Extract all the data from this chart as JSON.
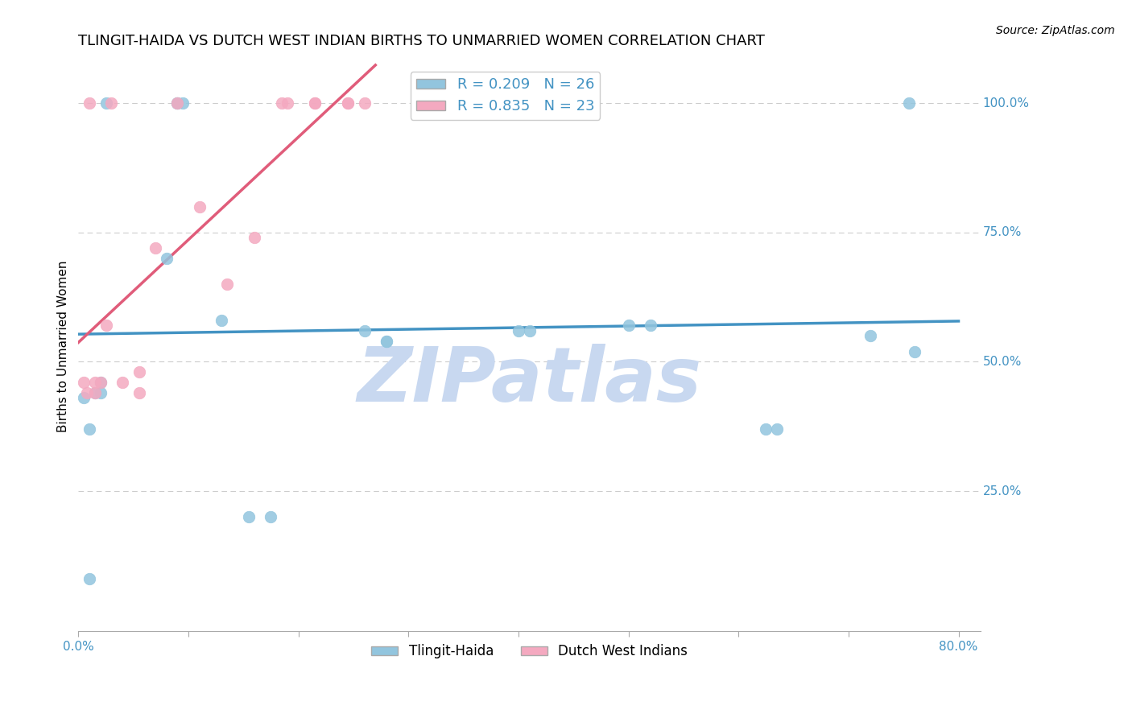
{
  "title": "TLINGIT-HAIDA VS DUTCH WEST INDIAN BIRTHS TO UNMARRIED WOMEN CORRELATION CHART",
  "source": "Source: ZipAtlas.com",
  "ylabel": "Births to Unmarried Women",
  "xlim": [
    0.0,
    0.82
  ],
  "ylim": [
    -0.02,
    1.08
  ],
  "xticks": [
    0.0,
    0.1,
    0.2,
    0.3,
    0.4,
    0.5,
    0.6,
    0.7,
    0.8
  ],
  "xticklabels": [
    "0.0%",
    "",
    "",
    "",
    "",
    "",
    "",
    "",
    "80.0%"
  ],
  "ytick_vals": [
    0.25,
    0.5,
    0.75,
    1.0
  ],
  "ytick_labels": [
    "25.0%",
    "50.0%",
    "75.0%",
    "100.0%"
  ],
  "blue_x": [
    0.005,
    0.01,
    0.01,
    0.015,
    0.02,
    0.02,
    0.025,
    0.08,
    0.09,
    0.09,
    0.095,
    0.13,
    0.155,
    0.175,
    0.26,
    0.28,
    0.28,
    0.4,
    0.41,
    0.5,
    0.52,
    0.625,
    0.635,
    0.72,
    0.755,
    0.76
  ],
  "blue_y": [
    0.43,
    0.37,
    0.08,
    0.44,
    0.46,
    0.44,
    1.0,
    0.7,
    1.0,
    1.0,
    1.0,
    0.58,
    0.2,
    0.2,
    0.56,
    0.54,
    0.54,
    0.56,
    0.56,
    0.57,
    0.57,
    0.37,
    0.37,
    0.55,
    1.0,
    0.52
  ],
  "pink_x": [
    0.005,
    0.008,
    0.01,
    0.015,
    0.015,
    0.02,
    0.025,
    0.03,
    0.04,
    0.055,
    0.055,
    0.07,
    0.09,
    0.11,
    0.135,
    0.16,
    0.185,
    0.19,
    0.215,
    0.215,
    0.245,
    0.245,
    0.26
  ],
  "pink_y": [
    0.46,
    0.44,
    1.0,
    0.44,
    0.46,
    0.46,
    0.57,
    1.0,
    0.46,
    0.44,
    0.48,
    0.72,
    1.0,
    0.8,
    0.65,
    0.74,
    1.0,
    1.0,
    1.0,
    1.0,
    1.0,
    1.0,
    1.0
  ],
  "blue_color": "#92c5de",
  "pink_color": "#f4a9c0",
  "blue_line_color": "#4393c3",
  "pink_line_color": "#e05c7a",
  "blue_R": "0.209",
  "blue_N": "26",
  "pink_R": "0.835",
  "pink_N": "23",
  "legend_label_blue": "Tlingit-Haida",
  "legend_label_pink": "Dutch West Indians",
  "watermark": "ZIPatlas",
  "watermark_color": "#c8d8f0",
  "grid_color": "#cccccc",
  "title_fontsize": 13,
  "axis_label_fontsize": 11,
  "tick_fontsize": 11,
  "legend_fontsize": 13
}
